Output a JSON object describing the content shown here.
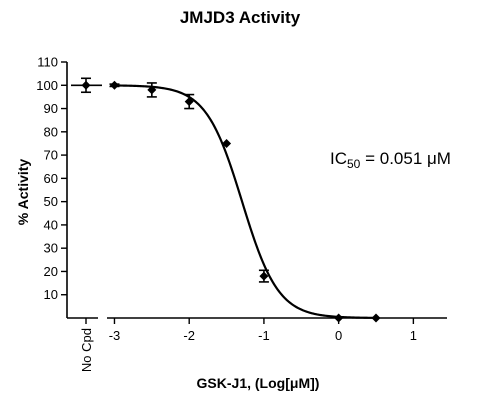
{
  "chart_data": {
    "type": "scatter",
    "title": "JMJD3 Activity",
    "xlabel": "GSK-J1, (Log[μM])",
    "ylabel": "% Activity",
    "ylim": [
      0,
      110
    ],
    "xlim": [
      -3.1,
      1.45
    ],
    "yticks": [
      10,
      20,
      30,
      40,
      50,
      60,
      70,
      80,
      90,
      100,
      110
    ],
    "xticks": [
      -3,
      -2,
      -1,
      0,
      1
    ],
    "control": {
      "label": "No Cpd",
      "value": 100,
      "error": 3
    },
    "points": [
      {
        "x": -3.0,
        "y": 100,
        "error": 0.5
      },
      {
        "x": -2.5,
        "y": 98,
        "error": 3
      },
      {
        "x": -2.0,
        "y": 93,
        "error": 3
      },
      {
        "x": -1.5,
        "y": 75,
        "error": 0
      },
      {
        "x": -1.0,
        "y": 18,
        "error": 2.5
      },
      {
        "x": 0.0,
        "y": 0,
        "error": 0
      },
      {
        "x": 0.5,
        "y": 0,
        "error": 0
      }
    ],
    "fit": {
      "model": "sigmoidal dose-response",
      "top": 100,
      "bottom": 0,
      "logIC50": -1.292,
      "hill": -1.8
    },
    "annotation": {
      "prefix": "IC",
      "subscript": "50",
      "suffix": " = 0.051 μM"
    },
    "grid": false,
    "legend": "none"
  }
}
